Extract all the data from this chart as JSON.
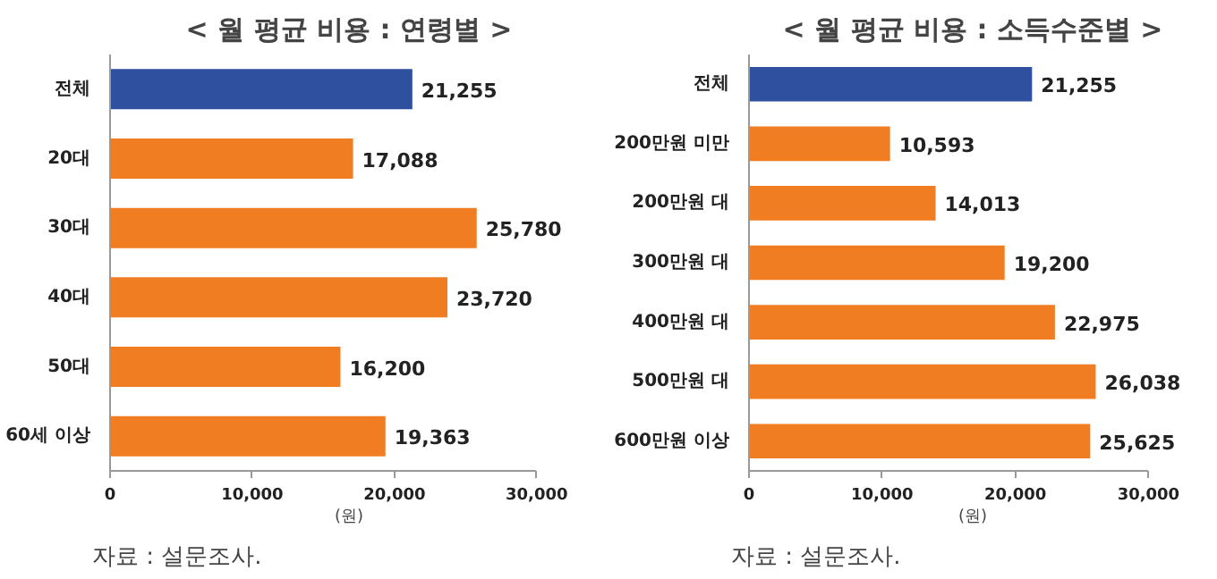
{
  "chart_data": [
    {
      "type": "bar",
      "orientation": "horizontal",
      "title": "< 월 평균 비용 : 연령별 >",
      "categories": [
        "전체",
        "20대",
        "30대",
        "40대",
        "50대",
        "60세 이상"
      ],
      "values": [
        21255,
        17088,
        25780,
        23720,
        16200,
        19363
      ],
      "colors": [
        "#2f4f9f",
        "#f07d22",
        "#f07d22",
        "#f07d22",
        "#f07d22",
        "#f07d22"
      ],
      "value_labels": [
        "21,255",
        "17,088",
        "25,780",
        "23,720",
        "16,200",
        "19,363"
      ],
      "xlim": [
        0,
        30000
      ],
      "xticks": [
        {
          "value": 0,
          "label": "0"
        },
        {
          "value": 10000,
          "label": "10,000"
        },
        {
          "value": 20000,
          "label": "20,000"
        },
        {
          "value": 30000,
          "label": "30,000"
        }
      ],
      "xlabel": "(원)",
      "grid": false,
      "annotations": [
        "자료 : 설문조사."
      ]
    },
    {
      "type": "bar",
      "orientation": "horizontal",
      "title": "< 월 평균 비용 : 소득수준별 >",
      "categories": [
        "전체",
        "200만원 미만",
        "200만원 대",
        "300만원 대",
        "400만원 대",
        "500만원 대",
        "600만원 이상"
      ],
      "values": [
        21255,
        10593,
        14013,
        19200,
        22975,
        26038,
        25625
      ],
      "colors": [
        "#2f4f9f",
        "#f07d22",
        "#f07d22",
        "#f07d22",
        "#f07d22",
        "#f07d22",
        "#f07d22"
      ],
      "value_labels": [
        "21,255",
        "10,593",
        "14,013",
        "19,200",
        "22,975",
        "26,038",
        "25,625"
      ],
      "xlim": [
        0,
        30000
      ],
      "xticks": [
        {
          "value": 0,
          "label": "0"
        },
        {
          "value": 10000,
          "label": "10,000"
        },
        {
          "value": 20000,
          "label": "20,000"
        },
        {
          "value": 30000,
          "label": "30,000"
        }
      ],
      "xlabel": "(원)",
      "grid": false,
      "annotations": [
        "자료 : 설문조사."
      ]
    }
  ]
}
